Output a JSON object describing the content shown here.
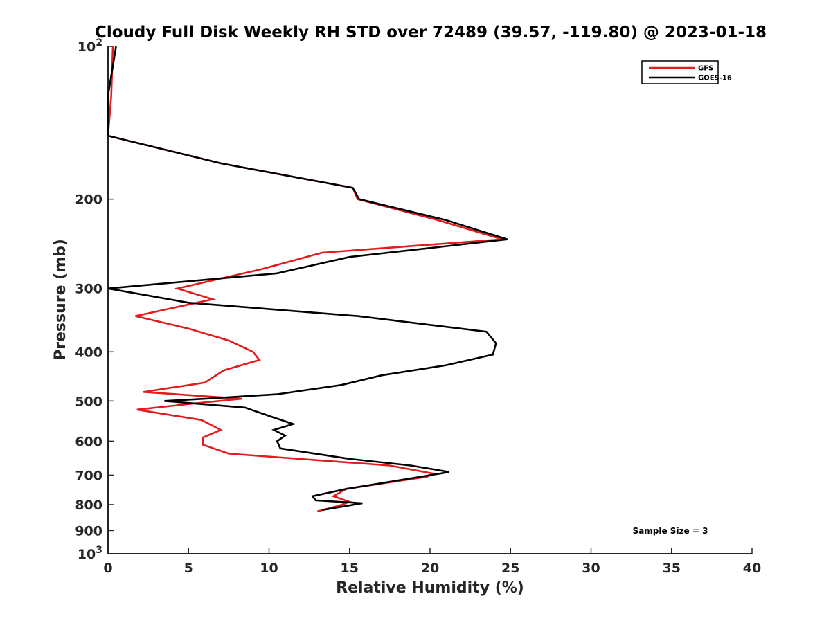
{
  "chart_data": {
    "type": "line",
    "title": "Cloudy Full Disk Weekly RH STD over 72489 (39.57, -119.80) @ 2023-01-18",
    "xlabel": "Relative Humidity (%)",
    "ylabel": "Pressure (mb)",
    "xlim": [
      0,
      40
    ],
    "ylim": [
      100,
      1000
    ],
    "yscale": "log",
    "y_reversed": true,
    "grid": false,
    "legend_position": "top-right",
    "x_ticks": [
      {
        "value": 0,
        "label": "0"
      },
      {
        "value": 5,
        "label": "5"
      },
      {
        "value": 10,
        "label": "10"
      },
      {
        "value": 15,
        "label": "15"
      },
      {
        "value": 20,
        "label": "20"
      },
      {
        "value": 25,
        "label": "25"
      },
      {
        "value": 30,
        "label": "30"
      },
      {
        "value": 35,
        "label": "35"
      },
      {
        "value": 40,
        "label": "40"
      }
    ],
    "y_ticks": [
      {
        "value": 100,
        "base": "10",
        "exp": "2"
      },
      {
        "value": 200,
        "label": "200"
      },
      {
        "value": 300,
        "label": "300"
      },
      {
        "value": 400,
        "label": "400"
      },
      {
        "value": 500,
        "label": "500"
      },
      {
        "value": 600,
        "label": "600"
      },
      {
        "value": 700,
        "label": "700"
      },
      {
        "value": 800,
        "label": "800"
      },
      {
        "value": 900,
        "label": "900"
      },
      {
        "value": 1000,
        "base": "10",
        "exp": "3"
      }
    ],
    "series": [
      {
        "name": "GFS",
        "color": "#e41a1c",
        "points": [
          [
            0.3,
            100
          ],
          [
            0.2,
            125
          ],
          [
            0.0,
            150
          ],
          [
            7.0,
            170
          ],
          [
            15.2,
            190
          ],
          [
            15.5,
            200
          ],
          [
            20.5,
            220
          ],
          [
            24.5,
            240
          ],
          [
            13.3,
            255
          ],
          [
            9.5,
            275
          ],
          [
            4.3,
            300
          ],
          [
            6.5,
            315
          ],
          [
            1.7,
            340
          ],
          [
            5.0,
            360
          ],
          [
            7.5,
            380
          ],
          [
            9.0,
            400
          ],
          [
            9.4,
            415
          ],
          [
            7.2,
            435
          ],
          [
            6.0,
            460
          ],
          [
            2.2,
            480
          ],
          [
            8.3,
            495
          ],
          [
            5.5,
            505
          ],
          [
            1.8,
            520
          ],
          [
            5.8,
            545
          ],
          [
            7.0,
            570
          ],
          [
            5.9,
            590
          ],
          [
            5.9,
            610
          ],
          [
            7.5,
            635
          ],
          [
            17.5,
            670
          ],
          [
            20.2,
            695
          ],
          [
            19.8,
            705
          ],
          [
            14.8,
            745
          ],
          [
            14.0,
            770
          ],
          [
            15.0,
            790
          ],
          [
            14.3,
            805
          ],
          [
            13.0,
            825
          ]
        ]
      },
      {
        "name": "GOES-16",
        "color": "#000000",
        "points": [
          [
            0.5,
            100
          ],
          [
            0.0,
            125
          ],
          [
            0.0,
            150
          ],
          [
            7.0,
            170
          ],
          [
            15.2,
            190
          ],
          [
            15.6,
            200
          ],
          [
            21.0,
            220
          ],
          [
            24.8,
            240
          ],
          [
            15.0,
            260
          ],
          [
            10.5,
            280
          ],
          [
            0.0,
            300
          ],
          [
            5.0,
            320
          ],
          [
            15.5,
            340
          ],
          [
            23.5,
            365
          ],
          [
            24.1,
            385
          ],
          [
            23.9,
            405
          ],
          [
            21.0,
            425
          ],
          [
            17.0,
            445
          ],
          [
            14.5,
            465
          ],
          [
            10.5,
            485
          ],
          [
            6.0,
            495
          ],
          [
            3.5,
            500
          ],
          [
            8.5,
            515
          ],
          [
            10.0,
            535
          ],
          [
            11.5,
            555
          ],
          [
            10.3,
            570
          ],
          [
            11.0,
            585
          ],
          [
            10.5,
            600
          ],
          [
            10.7,
            620
          ],
          [
            15.0,
            650
          ],
          [
            18.8,
            670
          ],
          [
            21.2,
            690
          ],
          [
            20.0,
            700
          ],
          [
            14.8,
            745
          ],
          [
            12.7,
            770
          ],
          [
            12.9,
            785
          ],
          [
            15.8,
            795
          ],
          [
            13.3,
            820
          ]
        ]
      }
    ],
    "annotations": [
      {
        "text": "Sample Size = 3"
      }
    ]
  }
}
